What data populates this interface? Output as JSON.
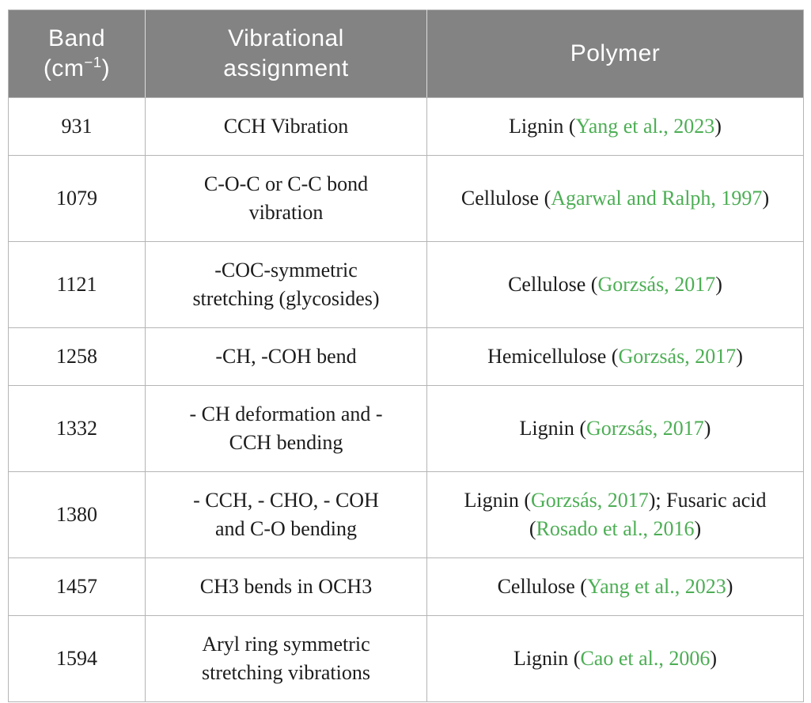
{
  "colors": {
    "header_bg": "#838383",
    "header_text": "#ffffff",
    "body_text": "#1c1c1c",
    "citation_green": "#4cae54",
    "border": "#b5b5b5",
    "header_divider": "#dcdcdc"
  },
  "table": {
    "header": {
      "band_line1": "Band",
      "band_unit_open": "(cm",
      "band_unit_sup": "−1",
      "band_unit_close": ")",
      "assignment_line1": "Vibrational",
      "assignment_line2": "assignment",
      "polymer": "Polymer"
    },
    "rows": [
      {
        "band": "931",
        "assignment": [
          "CCH Vibration"
        ],
        "polymer": [
          {
            "t": "Lignin ("
          },
          {
            "t": "Yang et al., 2023",
            "cite": true
          },
          {
            "t": ")"
          }
        ]
      },
      {
        "band": "1079",
        "assignment": [
          "C-O-C or C-C bond",
          "vibration"
        ],
        "polymer": [
          {
            "t": "Cellulose ("
          },
          {
            "t": "Agarwal and Ralph, 1997",
            "cite": true
          },
          {
            "t": ")"
          }
        ]
      },
      {
        "band": "1121",
        "assignment": [
          "-COC-symmetric",
          "stretching (glycosides)"
        ],
        "polymer": [
          {
            "t": "Cellulose ("
          },
          {
            "t": "Gorzsás, 2017",
            "cite": true
          },
          {
            "t": ")"
          }
        ]
      },
      {
        "band": "1258",
        "assignment": [
          "-CH, -COH bend"
        ],
        "polymer": [
          {
            "t": "Hemicellulose ("
          },
          {
            "t": "Gorzsás, 2017",
            "cite": true
          },
          {
            "t": ")"
          }
        ]
      },
      {
        "band": "1332",
        "assignment": [
          "- CH deformation and -",
          "CCH bending"
        ],
        "polymer": [
          {
            "t": "Lignin ("
          },
          {
            "t": "Gorzsás, 2017",
            "cite": true
          },
          {
            "t": ")"
          }
        ]
      },
      {
        "band": "1380",
        "assignment": [
          "- CCH, - CHO, - COH",
          "and C-O bending"
        ],
        "polymer": [
          {
            "t": "Lignin ("
          },
          {
            "t": "Gorzsás, 2017",
            "cite": true
          },
          {
            "t": "); Fusaric acid"
          },
          {
            "br": true
          },
          {
            "t": "("
          },
          {
            "t": "Rosado et al., 2016",
            "cite": true
          },
          {
            "t": ")"
          }
        ]
      },
      {
        "band": "1457",
        "assignment": [
          "CH3 bends in OCH3"
        ],
        "polymer": [
          {
            "t": "Cellulose ("
          },
          {
            "t": "Yang et al., 2023",
            "cite": true
          },
          {
            "t": ")"
          }
        ]
      },
      {
        "band": "1594",
        "assignment": [
          "Aryl ring symmetric",
          "stretching vibrations"
        ],
        "polymer": [
          {
            "t": "Lignin ("
          },
          {
            "t": "Cao et al., 2006",
            "cite": true
          },
          {
            "t": ")"
          }
        ]
      }
    ]
  }
}
